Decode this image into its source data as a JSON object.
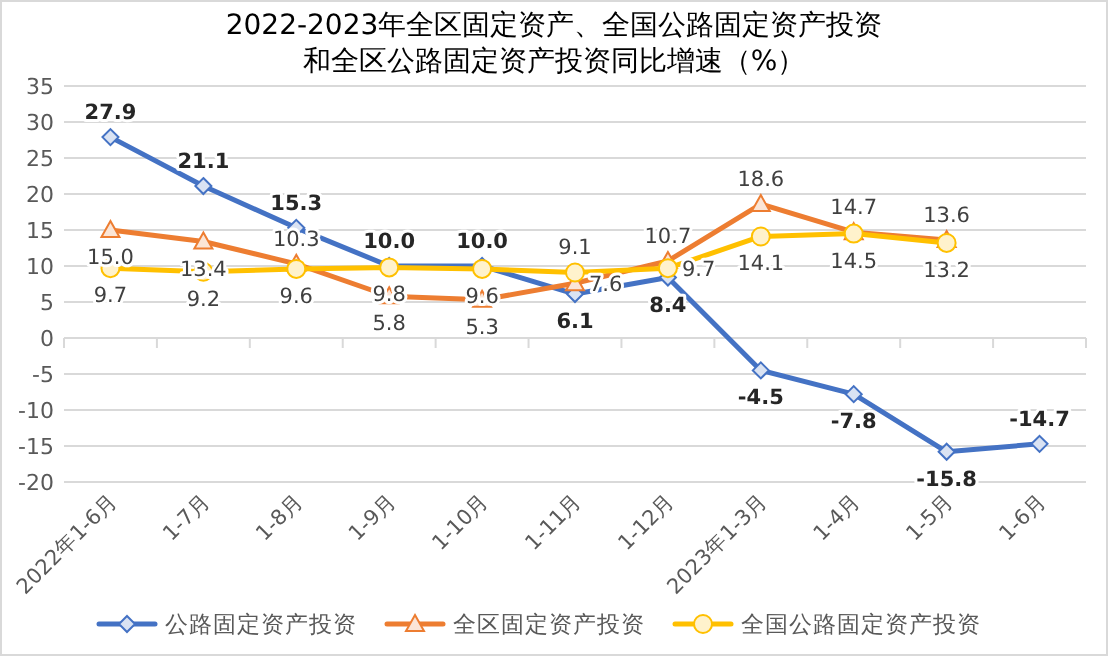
{
  "chart_data": {
    "type": "line",
    "title": "2022-2023年全区固定资产、全国公路固定资产投资和全区公路固定资产投资同比增速（%）",
    "categories": [
      "2022年1-6月",
      "1-7月",
      "1-8月",
      "1-9月",
      "1-10月",
      "1-11月",
      "1-12月",
      "2023年1-3月",
      "1-4月",
      "1-5月",
      "1-6月"
    ],
    "series": [
      {
        "name": "公路固定资产投资",
        "color": "#4472c4",
        "marker": "diamond",
        "values": [
          27.9,
          21.1,
          15.3,
          10.0,
          10.0,
          6.1,
          8.4,
          -4.5,
          -7.8,
          -15.8,
          -14.7
        ],
        "value_labels": [
          "27.9",
          "21.1",
          "15.3",
          "10.0",
          "10.0",
          "6.1",
          "8.4",
          "-4.5",
          "-7.8",
          "-15.8",
          "-14.7"
        ]
      },
      {
        "name": "全区固定资产投资",
        "color": "#ed7d31",
        "marker": "triangle",
        "values": [
          15.0,
          13.4,
          10.3,
          5.8,
          5.3,
          7.6,
          10.7,
          18.6,
          14.7,
          13.6,
          null
        ],
        "value_labels": [
          "15.0",
          "13.4",
          "10.3",
          "5.8",
          "5.3",
          "7.6",
          "10.7",
          "18.6",
          "14.7",
          "13.6",
          null
        ]
      },
      {
        "name": "全国公路固定资产投资",
        "color": "#ffc000",
        "marker": "circle",
        "values": [
          9.7,
          9.2,
          9.6,
          9.8,
          9.6,
          9.1,
          9.7,
          14.1,
          14.5,
          13.2,
          null
        ],
        "value_labels": [
          "9.7",
          "9.2",
          "9.6",
          "9.8",
          "9.6",
          "9.1",
          "9.7",
          "14.1",
          "14.5",
          "13.2",
          null
        ]
      }
    ],
    "ylim": [
      -20,
      35
    ],
    "yticks": [
      -20,
      -15,
      -10,
      -5,
      0,
      5,
      10,
      15,
      20,
      25,
      30,
      35
    ],
    "grid": "y",
    "legend": "bottom",
    "line_style": "solid"
  }
}
